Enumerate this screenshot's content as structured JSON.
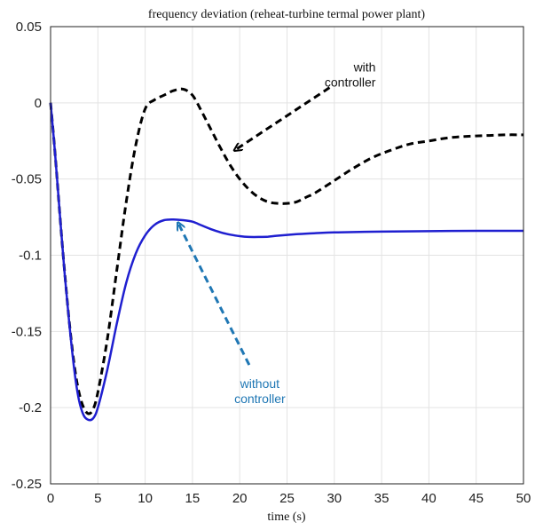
{
  "chart_data": {
    "type": "line",
    "title": "frequency deviation (reheat-turbine termal power plant)",
    "xlabel": "time (s)",
    "ylabel": "",
    "xlim": [
      0,
      50
    ],
    "ylim": [
      -0.25,
      0.05
    ],
    "xticks": [
      "0",
      "5",
      "10",
      "15",
      "20",
      "25",
      "30",
      "35",
      "40",
      "45",
      "50"
    ],
    "yticks": [
      "0.05",
      "0",
      "-0.05",
      "-0.1",
      "-0.15",
      "-0.2",
      "-0.25"
    ],
    "grid": true,
    "series": [
      {
        "name": "with controller",
        "color": "#000000",
        "style": "dashed",
        "x": [
          0,
          0.5,
          1,
          1.5,
          2,
          2.5,
          3,
          3.5,
          4,
          4.5,
          5,
          6,
          7,
          8,
          9,
          10,
          11,
          12,
          13,
          14,
          15,
          16,
          17,
          18,
          19,
          20,
          21,
          22,
          23,
          24,
          25,
          26,
          27,
          28,
          30,
          32,
          34,
          36,
          38,
          40,
          42,
          44,
          46,
          48,
          50
        ],
        "y": [
          0,
          -0.035,
          -0.075,
          -0.112,
          -0.145,
          -0.172,
          -0.19,
          -0.2,
          -0.204,
          -0.201,
          -0.19,
          -0.155,
          -0.11,
          -0.065,
          -0.028,
          -0.004,
          0.002,
          0.005,
          0.008,
          0.009,
          0.005,
          -0.006,
          -0.018,
          -0.03,
          -0.041,
          -0.05,
          -0.057,
          -0.062,
          -0.065,
          -0.066,
          -0.066,
          -0.065,
          -0.062,
          -0.059,
          -0.051,
          -0.043,
          -0.036,
          -0.031,
          -0.027,
          -0.025,
          -0.023,
          -0.022,
          -0.0215,
          -0.021,
          -0.021
        ]
      },
      {
        "name": "without controller",
        "color": "#1f1fd0",
        "style": "solid",
        "x": [
          0,
          0.5,
          1,
          1.5,
          2,
          2.5,
          3,
          3.5,
          4,
          4.5,
          5,
          6,
          7,
          8,
          9,
          10,
          11,
          12,
          13,
          14,
          15,
          16,
          17,
          18,
          19,
          20,
          21,
          22,
          23,
          24,
          26,
          28,
          30,
          35,
          40,
          45,
          50
        ],
        "y": [
          0,
          -0.035,
          -0.075,
          -0.113,
          -0.146,
          -0.175,
          -0.195,
          -0.205,
          -0.208,
          -0.207,
          -0.2,
          -0.175,
          -0.145,
          -0.118,
          -0.099,
          -0.087,
          -0.08,
          -0.077,
          -0.0765,
          -0.077,
          -0.078,
          -0.0805,
          -0.083,
          -0.085,
          -0.0865,
          -0.0875,
          -0.088,
          -0.088,
          -0.0878,
          -0.0872,
          -0.0862,
          -0.0855,
          -0.085,
          -0.0845,
          -0.0842,
          -0.084,
          -0.084
        ]
      }
    ],
    "annotations": [
      {
        "lines": [
          "with",
          "controller"
        ],
        "color": "#111111",
        "arrow_from": [
          29.5,
          0.01
        ],
        "arrow_to": [
          19.5,
          -0.031
        ]
      },
      {
        "lines": [
          "without",
          "controller"
        ],
        "color": "#1f77b4",
        "arrow_from": [
          21,
          -0.172
        ],
        "arrow_to": [
          13.5,
          -0.079
        ]
      }
    ]
  }
}
